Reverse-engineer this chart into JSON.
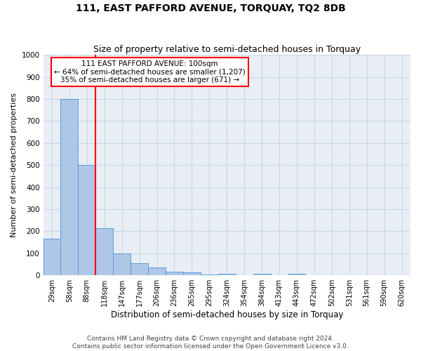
{
  "title": "111, EAST PAFFORD AVENUE, TORQUAY, TQ2 8DB",
  "subtitle": "Size of property relative to semi-detached houses in Torquay",
  "xlabel": "Distribution of semi-detached houses by size in Torquay",
  "ylabel": "Number of semi-detached properties",
  "categories": [
    "29sqm",
    "58sqm",
    "88sqm",
    "118sqm",
    "147sqm",
    "177sqm",
    "206sqm",
    "236sqm",
    "265sqm",
    "295sqm",
    "324sqm",
    "354sqm",
    "384sqm",
    "413sqm",
    "443sqm",
    "472sqm",
    "502sqm",
    "531sqm",
    "561sqm",
    "590sqm",
    "620sqm"
  ],
  "values": [
    165,
    800,
    500,
    215,
    100,
    55,
    35,
    18,
    12,
    5,
    8,
    0,
    8,
    0,
    8,
    0,
    0,
    0,
    0,
    0,
    0
  ],
  "bar_color": "#aec6e8",
  "bar_edge_color": "#5a9fd4",
  "red_line_index": 2.5,
  "annotation_line1": "111 EAST PAFFORD AVENUE: 100sqm",
  "annotation_line2": "← 64% of semi-detached houses are smaller (1,207)",
  "annotation_line3": "35% of semi-detached houses are larger (671) →",
  "annotation_box_color": "white",
  "annotation_box_edge_color": "red",
  "red_line_color": "red",
  "ylim": [
    0,
    1000
  ],
  "yticks": [
    0,
    100,
    200,
    300,
    400,
    500,
    600,
    700,
    800,
    900,
    1000
  ],
  "grid_color": "#c8d8e8",
  "background_color": "#e8eef4",
  "footer_line1": "Contains HM Land Registry data © Crown copyright and database right 2024.",
  "footer_line2": "Contains public sector information licensed under the Open Government Licence v3.0.",
  "title_fontsize": 10,
  "subtitle_fontsize": 9,
  "tick_fontsize": 7,
  "ylabel_fontsize": 8,
  "xlabel_fontsize": 8.5,
  "annotation_fontsize": 7.5,
  "footer_fontsize": 6.5
}
